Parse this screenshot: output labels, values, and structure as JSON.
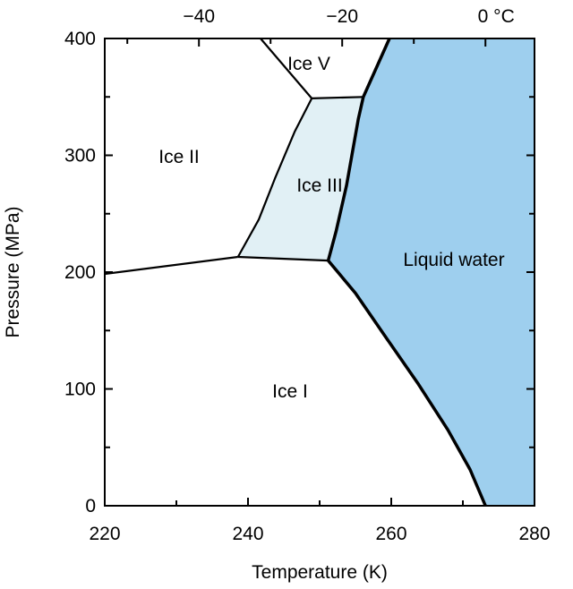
{
  "chart_data": {
    "type": "area",
    "title": "",
    "xlabel": "Temperature (K)",
    "ylabel": "Pressure (MPa)",
    "xlim": [
      220,
      280
    ],
    "ylim": [
      0,
      400
    ],
    "xticks": [
      220,
      240,
      260,
      280
    ],
    "xticks_minor_step": 10,
    "yticks": [
      0,
      100,
      200,
      300,
      400
    ],
    "yticks_minor_step": 50,
    "top_axis": {
      "unit": "°C",
      "ticks": [
        -40,
        -20,
        0
      ],
      "tick_labels": [
        "−40",
        "−20",
        "0 °C"
      ],
      "minor_ticks": [
        -50,
        -30,
        -10
      ]
    },
    "grid": false,
    "regions": [
      {
        "name": "Ice I",
        "color": "#ffffff"
      },
      {
        "name": "Ice II",
        "color": "#ffffff"
      },
      {
        "name": "Ice III",
        "color": "#e1f0f5"
      },
      {
        "name": "Ice V",
        "color": "#ffffff"
      },
      {
        "name": "Liquid water",
        "color": "#9ecfee"
      }
    ],
    "boundaries": [
      {
        "between": [
          "Ice I",
          "Ice II"
        ],
        "points": [
          [
            220,
            198.5
          ],
          [
            238.6,
            213
          ]
        ],
        "bold": false
      },
      {
        "between": [
          "Ice I",
          "Ice III"
        ],
        "points": [
          [
            238.6,
            213
          ],
          [
            251.2,
            209.9
          ]
        ],
        "bold": false
      },
      {
        "between": [
          "Ice II",
          "Ice III"
        ],
        "points": [
          [
            238.6,
            213
          ],
          [
            241.5,
            245
          ],
          [
            243.75,
            280
          ],
          [
            246.5,
            320
          ],
          [
            248.9,
            348.7
          ]
        ],
        "bold": false
      },
      {
        "between": [
          "Ice III",
          "Ice V"
        ],
        "points": [
          [
            248.9,
            348.7
          ],
          [
            256.1,
            350
          ]
        ],
        "bold": false
      },
      {
        "between": [
          "Ice II",
          "Ice V"
        ],
        "points": [
          [
            248.9,
            348.7
          ],
          [
            241.75,
            400
          ]
        ],
        "bold": false
      },
      {
        "between": [
          "Ice I",
          "Liquid water"
        ],
        "points": [
          [
            251.2,
            209.9
          ],
          [
            255,
            182
          ],
          [
            259.5,
            142
          ],
          [
            263.8,
            104
          ],
          [
            267.9,
            65
          ],
          [
            271,
            31
          ],
          [
            273.15,
            0
          ]
        ],
        "bold": true
      },
      {
        "between": [
          "Ice III",
          "Liquid water"
        ],
        "points": [
          [
            251.2,
            209.9
          ],
          [
            252.3,
            235
          ],
          [
            253.75,
            274
          ],
          [
            255.4,
            331
          ],
          [
            256.1,
            350
          ]
        ],
        "bold": true
      },
      {
        "between": [
          "Ice V",
          "Liquid water"
        ],
        "points": [
          [
            256.1,
            350
          ],
          [
            259.75,
            400
          ]
        ],
        "bold": true
      }
    ]
  }
}
